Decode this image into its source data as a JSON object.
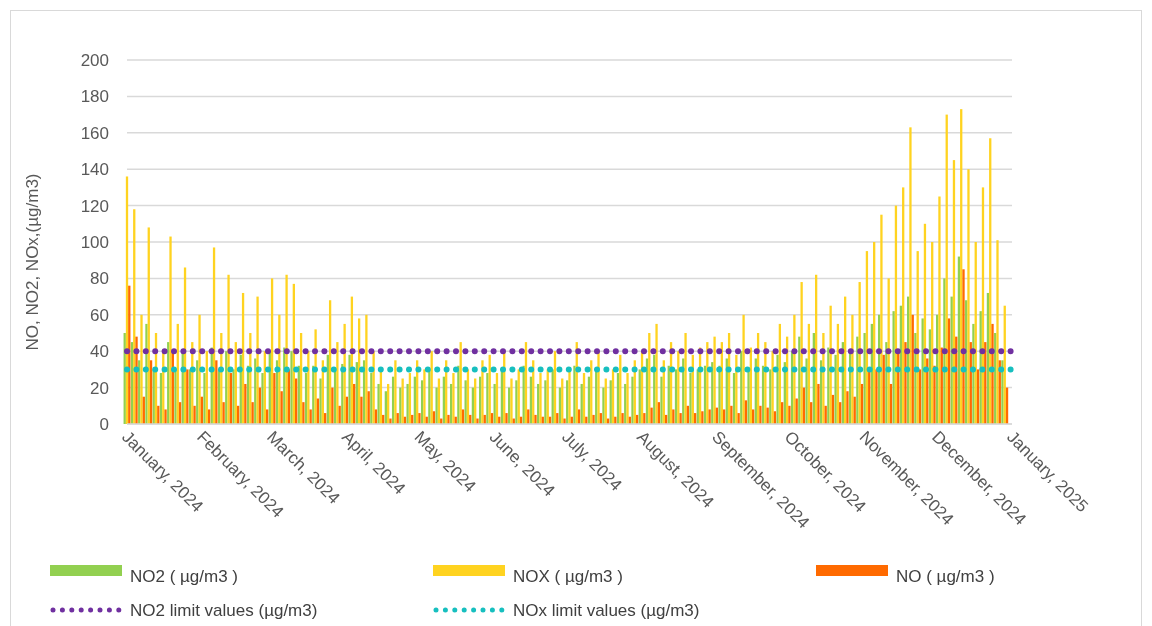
{
  "chart_data": {
    "type": "bar",
    "ylabel": "NO, NO2, NOx,(µg/m3)",
    "x": [
      "2024-01-01",
      "2024-01-04",
      "2024-01-07",
      "2024-01-10",
      "2024-01-13",
      "2024-01-16",
      "2024-01-19",
      "2024-01-22",
      "2024-01-25",
      "2024-01-28",
      "2024-01-31",
      "2024-02-03",
      "2024-02-06",
      "2024-02-09",
      "2024-02-12",
      "2024-02-15",
      "2024-02-18",
      "2024-02-21",
      "2024-02-24",
      "2024-02-27",
      "2024-03-01",
      "2024-03-04",
      "2024-03-07",
      "2024-03-10",
      "2024-03-13",
      "2024-03-16",
      "2024-03-19",
      "2024-03-22",
      "2024-03-25",
      "2024-03-28",
      "2024-03-31",
      "2024-04-03",
      "2024-04-06",
      "2024-04-09",
      "2024-04-12",
      "2024-04-15",
      "2024-04-18",
      "2024-04-21",
      "2024-04-24",
      "2024-04-27",
      "2024-04-30",
      "2024-05-03",
      "2024-05-06",
      "2024-05-09",
      "2024-05-12",
      "2024-05-15",
      "2024-05-18",
      "2024-05-21",
      "2024-05-24",
      "2024-05-27",
      "2024-05-30",
      "2024-06-02",
      "2024-06-05",
      "2024-06-08",
      "2024-06-11",
      "2024-06-14",
      "2024-06-17",
      "2024-06-20",
      "2024-06-23",
      "2024-06-26",
      "2024-06-29",
      "2024-07-02",
      "2024-07-05",
      "2024-07-08",
      "2024-07-11",
      "2024-07-14",
      "2024-07-17",
      "2024-07-20",
      "2024-07-23",
      "2024-07-26",
      "2024-07-29",
      "2024-08-01",
      "2024-08-04",
      "2024-08-07",
      "2024-08-10",
      "2024-08-13",
      "2024-08-16",
      "2024-08-19",
      "2024-08-22",
      "2024-08-25",
      "2024-08-28",
      "2024-08-31",
      "2024-09-03",
      "2024-09-06",
      "2024-09-09",
      "2024-09-12",
      "2024-09-15",
      "2024-09-18",
      "2024-09-21",
      "2024-09-24",
      "2024-09-27",
      "2024-09-30",
      "2024-10-03",
      "2024-10-06",
      "2024-10-09",
      "2024-10-12",
      "2024-10-15",
      "2024-10-18",
      "2024-10-21",
      "2024-10-24",
      "2024-10-27",
      "2024-10-30",
      "2024-11-02",
      "2024-11-05",
      "2024-11-08",
      "2024-11-11",
      "2024-11-14",
      "2024-11-17",
      "2024-11-20",
      "2024-11-23",
      "2024-11-26",
      "2024-11-29",
      "2024-12-02",
      "2024-12-05",
      "2024-12-08",
      "2024-12-11",
      "2024-12-14",
      "2024-12-17",
      "2024-12-20",
      "2024-12-23",
      "2024-12-26",
      "2024-12-29"
    ],
    "series": [
      {
        "name": "NO2 ( µg/m3 )",
        "color": "#92d050",
        "values": [
          50,
          45,
          35,
          55,
          30,
          28,
          45,
          30,
          40,
          30,
          35,
          28,
          42,
          30,
          40,
          30,
          38,
          32,
          36,
          28,
          40,
          35,
          42,
          40,
          32,
          28,
          32,
          25,
          38,
          30,
          33,
          38,
          34,
          35,
          28,
          22,
          18,
          26,
          20,
          22,
          26,
          24,
          30,
          20,
          26,
          22,
          32,
          24,
          20,
          26,
          28,
          22,
          30,
          20,
          24,
          32,
          26,
          22,
          24,
          30,
          20,
          24,
          32,
          22,
          26,
          30,
          20,
          24,
          28,
          22,
          26,
          30,
          36,
          38,
          26,
          32,
          30,
          36,
          28,
          30,
          32,
          34,
          32,
          36,
          28,
          40,
          30,
          36,
          32,
          30,
          38,
          34,
          40,
          48,
          36,
          50,
          35,
          42,
          38,
          45,
          40,
          48,
          50,
          55,
          60,
          45,
          62,
          65,
          70,
          50,
          58,
          52,
          60,
          80,
          70,
          92,
          68,
          55,
          62,
          72,
          50,
          35
        ]
      },
      {
        "name": "NOX ( µg/m3 )",
        "color": "#ffd320",
        "values": [
          136,
          118,
          60,
          108,
          50,
          40,
          103,
          55,
          86,
          45,
          60,
          40,
          97,
          50,
          82,
          45,
          72,
          50,
          70,
          40,
          80,
          60,
          82,
          77,
          50,
          40,
          52,
          35,
          68,
          45,
          55,
          70,
          58,
          60,
          40,
          30,
          22,
          35,
          25,
          28,
          35,
          30,
          40,
          25,
          35,
          28,
          45,
          30,
          25,
          35,
          38,
          28,
          40,
          25,
          30,
          45,
          35,
          28,
          30,
          40,
          25,
          30,
          45,
          28,
          35,
          40,
          25,
          30,
          38,
          28,
          35,
          40,
          50,
          55,
          35,
          45,
          40,
          50,
          38,
          42,
          45,
          48,
          45,
          50,
          38,
          60,
          42,
          50,
          45,
          40,
          55,
          48,
          60,
          78,
          55,
          82,
          50,
          65,
          55,
          70,
          60,
          78,
          95,
          100,
          115,
          80,
          120,
          130,
          163,
          95,
          110,
          100,
          125,
          170,
          145,
          173,
          140,
          100,
          130,
          157,
          101,
          65
        ]
      },
      {
        "name": "NO ( µg/m3 )",
        "color": "#ff6a00",
        "values": [
          76,
          48,
          15,
          35,
          10,
          8,
          40,
          12,
          30,
          10,
          15,
          8,
          35,
          12,
          28,
          10,
          22,
          12,
          20,
          8,
          28,
          18,
          30,
          25,
          12,
          8,
          14,
          6,
          20,
          10,
          15,
          22,
          15,
          18,
          8,
          5,
          3,
          6,
          4,
          5,
          6,
          4,
          7,
          3,
          5,
          4,
          8,
          5,
          3,
          5,
          6,
          4,
          6,
          3,
          4,
          8,
          5,
          4,
          4,
          6,
          3,
          4,
          8,
          4,
          5,
          6,
          3,
          4,
          6,
          4,
          5,
          6,
          9,
          12,
          5,
          8,
          6,
          10,
          6,
          7,
          8,
          9,
          8,
          10,
          6,
          13,
          8,
          10,
          9,
          7,
          12,
          10,
          14,
          20,
          12,
          22,
          10,
          16,
          12,
          18,
          15,
          22,
          30,
          30,
          38,
          22,
          40,
          45,
          60,
          30,
          36,
          32,
          42,
          58,
          48,
          85,
          45,
          30,
          45,
          55,
          35,
          20
        ]
      },
      {
        "name": "NO2 limit values (µg/m3)",
        "type": "line",
        "color": "#7030a0",
        "line_style": "dotted",
        "x": [
          "2024-01-01",
          "2025-01-01"
        ],
        "values": [
          40,
          40
        ]
      },
      {
        "name": "NOx limit values (µg/m3)",
        "type": "line",
        "color": "#17bfbf",
        "line_style": "dotted",
        "x": [
          "2024-01-01",
          "2025-01-01"
        ],
        "values": [
          30,
          30
        ]
      }
    ],
    "xlim": [
      "2024-01-01",
      "2025-01-01"
    ],
    "xticks": [
      {
        "value": "2024-01-01",
        "label": "January, 2024"
      },
      {
        "value": "2024-02-01",
        "label": "February, 2024"
      },
      {
        "value": "2024-03-01",
        "label": "March, 2024"
      },
      {
        "value": "2024-04-01",
        "label": "April, 2024"
      },
      {
        "value": "2024-05-01",
        "label": "May, 2024"
      },
      {
        "value": "2024-06-01",
        "label": "June, 2024"
      },
      {
        "value": "2024-07-01",
        "label": "July, 2024"
      },
      {
        "value": "2024-08-01",
        "label": "August, 2024"
      },
      {
        "value": "2024-09-01",
        "label": "September, 2024"
      },
      {
        "value": "2024-10-01",
        "label": "October, 2024"
      },
      {
        "value": "2024-11-01",
        "label": "November, 2024"
      },
      {
        "value": "2024-12-01",
        "label": "December, 2024"
      },
      {
        "value": "2025-01-01",
        "label": "January, 2025"
      }
    ],
    "ylim": [
      0,
      200
    ],
    "yticks": [
      0,
      20,
      40,
      60,
      80,
      100,
      120,
      140,
      160,
      180,
      200
    ],
    "grid": "y",
    "legend": "bottom"
  }
}
